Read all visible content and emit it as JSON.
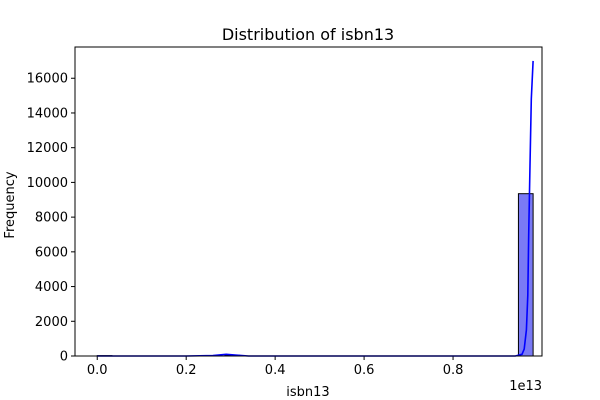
{
  "chart_data": {
    "type": "bar",
    "title": "Distribution of isbn13",
    "xlabel": "isbn13",
    "ylabel": "Frequency",
    "x_offset_label": "1e13",
    "xlim": [
      -0.05,
      1.0
    ],
    "ylim": [
      0,
      17800
    ],
    "x_ticks": [
      0.0,
      0.2,
      0.4,
      0.6,
      0.8
    ],
    "x_tick_labels": [
      "0.0",
      "0.2",
      "0.4",
      "0.6",
      "0.8"
    ],
    "y_ticks": [
      0,
      2000,
      4000,
      6000,
      8000,
      10000,
      12000,
      14000,
      16000
    ],
    "y_tick_labels": [
      "0",
      "2000",
      "4000",
      "6000",
      "8000",
      "10000",
      "12000",
      "14000",
      "16000"
    ],
    "grid": false,
    "bar_color": "#7a7af5",
    "bar_edge_color": "#000000",
    "kde_color": "#0000ff",
    "bars": [
      {
        "x0": 0.0,
        "x1": 0.033,
        "value": 20
      },
      {
        "x0": 0.287,
        "x1": 0.32,
        "value": 40
      },
      {
        "x0": 0.947,
        "x1": 0.98,
        "value": 9350
      }
    ],
    "kde": {
      "x": [
        0.0,
        0.1,
        0.2,
        0.26,
        0.29,
        0.31,
        0.34,
        0.4,
        0.5,
        0.6,
        0.7,
        0.8,
        0.9,
        0.94,
        0.955,
        0.96,
        0.965,
        0.968,
        0.97,
        0.973,
        0.976,
        0.98
      ],
      "y": [
        0,
        0,
        0,
        30,
        100,
        60,
        0,
        0,
        0,
        0,
        0,
        0,
        0,
        0,
        100,
        400,
        1500,
        3500,
        7000,
        11000,
        14800,
        17000
      ]
    }
  }
}
